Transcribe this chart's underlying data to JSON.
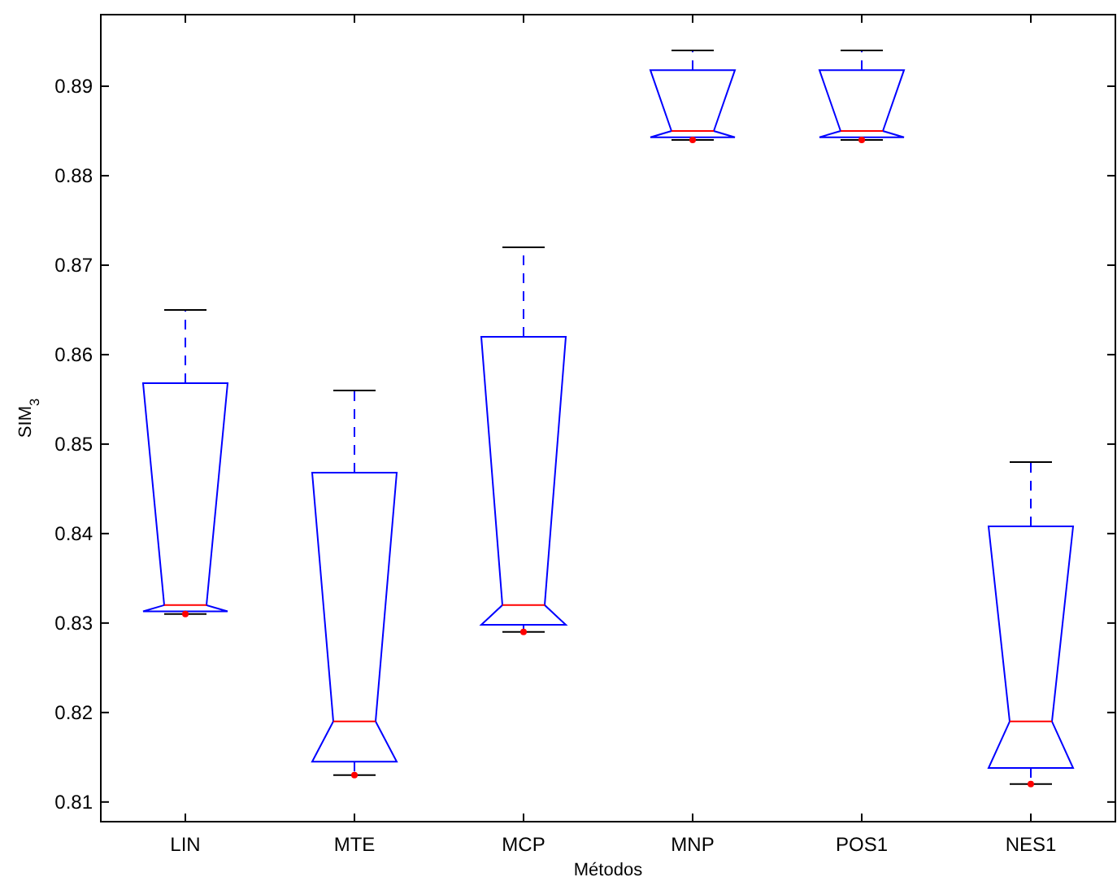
{
  "chart_data": {
    "type": "box",
    "xlabel": "Métodos",
    "ylabel": "SIM$_{3}$",
    "categories": [
      "LIN",
      "MTE",
      "MCP",
      "MNP",
      "POS1",
      "NES1"
    ],
    "boxes": [
      {
        "low": 0.831,
        "q1": 0.8313,
        "median": 0.832,
        "q3": 0.8568,
        "high": 0.865,
        "outliers": [
          0.831
        ]
      },
      {
        "low": 0.813,
        "q1": 0.8145,
        "median": 0.819,
        "q3": 0.8468,
        "high": 0.856,
        "outliers": [
          0.813
        ]
      },
      {
        "low": 0.829,
        "q1": 0.8298,
        "median": 0.832,
        "q3": 0.862,
        "high": 0.872,
        "outliers": [
          0.829
        ]
      },
      {
        "low": 0.884,
        "q1": 0.8843,
        "median": 0.885,
        "q3": 0.8918,
        "high": 0.894,
        "outliers": [
          0.884
        ]
      },
      {
        "low": 0.884,
        "q1": 0.8843,
        "median": 0.885,
        "q3": 0.8918,
        "high": 0.894,
        "outliers": [
          0.884
        ]
      },
      {
        "low": 0.812,
        "q1": 0.8138,
        "median": 0.819,
        "q3": 0.8408,
        "high": 0.848,
        "outliers": [
          0.812
        ]
      }
    ],
    "ylim": [
      0.8078,
      0.898
    ],
    "yticks": [
      0.81,
      0.82,
      0.83,
      0.84,
      0.85,
      0.86,
      0.87,
      0.88,
      0.89
    ]
  }
}
